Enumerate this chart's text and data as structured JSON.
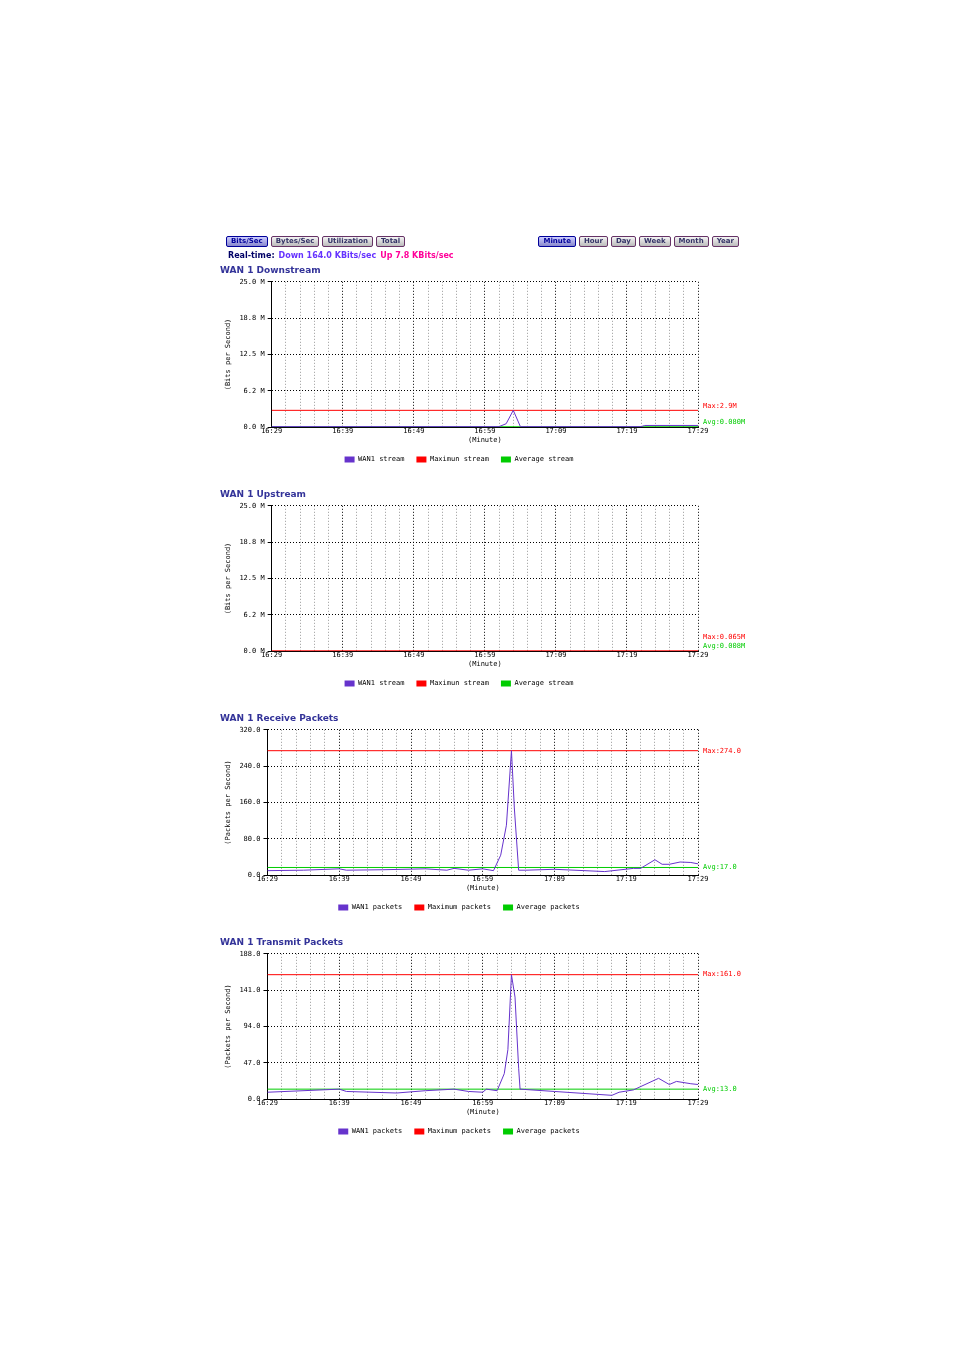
{
  "chart_data": [
    {
      "type": "other",
      "annotations": [
        "Bits/Sec",
        "Bytes/Sec",
        "Utilization",
        "Total",
        "Minute",
        "Hour",
        "Day",
        "Week",
        "Month",
        "Year",
        "Real-time:",
        "Down 164.0 KBits/sec",
        "Up 7.8 KBits/sec"
      ]
    },
    {
      "type": "line",
      "title": "WAN 1 Downstream",
      "xlabel": "(Minute)",
      "ylabel": "(Bits per Second)",
      "legend": "bottom",
      "grid": true,
      "xlim": [
        16.4833,
        17.4833
      ],
      "ylim": [
        0,
        25
      ],
      "xticks": [
        {
          "value": 16.4833,
          "label": "16:29"
        },
        {
          "value": 16.5167,
          "label": null
        },
        {
          "value": 16.55,
          "label": null
        },
        {
          "value": 16.5833,
          "label": null
        },
        {
          "value": 16.6167,
          "label": null
        },
        {
          "value": 16.65,
          "label": "16:39"
        },
        {
          "value": 16.6833,
          "label": null
        },
        {
          "value": 16.7167,
          "label": null
        },
        {
          "value": 16.75,
          "label": null
        },
        {
          "value": 16.7833,
          "label": null
        },
        {
          "value": 16.8167,
          "label": "16:49"
        },
        {
          "value": 16.85,
          "label": null
        },
        {
          "value": 16.8833,
          "label": null
        },
        {
          "value": 16.9167,
          "label": null
        },
        {
          "value": 16.95,
          "label": null
        },
        {
          "value": 16.9833,
          "label": "16:59"
        },
        {
          "value": 17.0167,
          "label": null
        },
        {
          "value": 17.05,
          "label": null
        },
        {
          "value": 17.0833,
          "label": null
        },
        {
          "value": 17.1167,
          "label": null
        },
        {
          "value": 17.15,
          "label": "17:09"
        },
        {
          "value": 17.1833,
          "label": null
        },
        {
          "value": 17.2167,
          "label": null
        },
        {
          "value": 17.25,
          "label": null
        },
        {
          "value": 17.2833,
          "label": null
        },
        {
          "value": 17.3167,
          "label": "17:19"
        },
        {
          "value": 17.35,
          "label": null
        },
        {
          "value": 17.3833,
          "label": null
        },
        {
          "value": 17.4167,
          "label": null
        },
        {
          "value": 17.45,
          "label": null
        },
        {
          "value": 17.4833,
          "label": "17:29"
        }
      ],
      "yticks": [
        {
          "value": 0,
          "label": "0.0 M"
        },
        {
          "value": 6.25,
          "label": "6.2 M"
        },
        {
          "value": 12.5,
          "label": "12.5 M"
        },
        {
          "value": 18.75,
          "label": "18.8 M"
        },
        {
          "value": 25,
          "label": "25.0 M"
        }
      ],
      "series": [
        {
          "name": "WAN1 stream",
          "color": "#6633cc",
          "x": [
            16.4833,
            17.0167,
            17.0333,
            17.05,
            17.0667,
            17.35,
            17.3583,
            17.4833
          ],
          "values": [
            0.1,
            0.1,
            0.6,
            2.9,
            0.1,
            0.1,
            0.3,
            0.3
          ]
        },
        {
          "name": "Maximun stream",
          "color": "#ff0000",
          "x": [
            16.4833,
            17.4833
          ],
          "values": [
            2.9,
            2.9
          ]
        },
        {
          "name": "Average stream",
          "color": "#00cc00",
          "x": [
            16.4833,
            17.4833
          ],
          "values": [
            0.08,
            0.08
          ]
        }
      ],
      "annotations": [
        "Max:2.9M",
        "Avg:0.080M"
      ]
    },
    {
      "type": "line",
      "title": "WAN 1 Upstream",
      "xlabel": "(Minute)",
      "ylabel": "(Bits per Second)",
      "legend": "bottom",
      "grid": true,
      "xlim": [
        16.4833,
        17.4833
      ],
      "ylim": [
        0,
        25
      ],
      "xticks": [
        {
          "value": 16.4833,
          "label": "16:29"
        },
        {
          "value": 16.5167,
          "label": null
        },
        {
          "value": 16.55,
          "label": null
        },
        {
          "value": 16.5833,
          "label": null
        },
        {
          "value": 16.6167,
          "label": null
        },
        {
          "value": 16.65,
          "label": "16:39"
        },
        {
          "value": 16.6833,
          "label": null
        },
        {
          "value": 16.7167,
          "label": null
        },
        {
          "value": 16.75,
          "label": null
        },
        {
          "value": 16.7833,
          "label": null
        },
        {
          "value": 16.8167,
          "label": "16:49"
        },
        {
          "value": 16.85,
          "label": null
        },
        {
          "value": 16.8833,
          "label": null
        },
        {
          "value": 16.9167,
          "label": null
        },
        {
          "value": 16.95,
          "label": null
        },
        {
          "value": 16.9833,
          "label": "16:59"
        },
        {
          "value": 17.0167,
          "label": null
        },
        {
          "value": 17.05,
          "label": null
        },
        {
          "value": 17.0833,
          "label": null
        },
        {
          "value": 17.1167,
          "label": null
        },
        {
          "value": 17.15,
          "label": "17:09"
        },
        {
          "value": 17.1833,
          "label": null
        },
        {
          "value": 17.2167,
          "label": null
        },
        {
          "value": 17.25,
          "label": null
        },
        {
          "value": 17.2833,
          "label": null
        },
        {
          "value": 17.3167,
          "label": "17:19"
        },
        {
          "value": 17.35,
          "label": null
        },
        {
          "value": 17.3833,
          "label": null
        },
        {
          "value": 17.4167,
          "label": null
        },
        {
          "value": 17.45,
          "label": null
        },
        {
          "value": 17.4833,
          "label": "17:29"
        }
      ],
      "yticks": [
        {
          "value": 0,
          "label": "0.0 M"
        },
        {
          "value": 6.25,
          "label": "6.2 M"
        },
        {
          "value": 12.5,
          "label": "12.5 M"
        },
        {
          "value": 18.75,
          "label": "18.8 M"
        },
        {
          "value": 25,
          "label": "25.0 M"
        }
      ],
      "series": [
        {
          "name": "WAN1 stream",
          "color": "#6633cc",
          "values": [
            null,
            null
          ]
        },
        {
          "name": "Maximun stream",
          "color": "#ff0000",
          "x": [
            16.4833,
            17.4833
          ],
          "values": [
            0.065,
            0.065
          ]
        },
        {
          "name": "Average stream",
          "color": "#00cc00",
          "values": [
            null,
            null
          ]
        }
      ],
      "annotations": [
        "Max:0.065M",
        "Avg:0.008M"
      ]
    },
    {
      "type": "line",
      "title": "WAN 1 Receive Packets",
      "xlabel": "(Minute)",
      "ylabel": "(Packets per Second)",
      "legend": "bottom",
      "grid": true,
      "xlim": [
        16.4833,
        17.4833
      ],
      "ylim": [
        0,
        320
      ],
      "xticks": [
        {
          "value": 16.4833,
          "label": "16:29"
        },
        {
          "value": 16.5167,
          "label": null
        },
        {
          "value": 16.55,
          "label": null
        },
        {
          "value": 16.5833,
          "label": null
        },
        {
          "value": 16.6167,
          "label": null
        },
        {
          "value": 16.65,
          "label": "16:39"
        },
        {
          "value": 16.6833,
          "label": null
        },
        {
          "value": 16.7167,
          "label": null
        },
        {
          "value": 16.75,
          "label": null
        },
        {
          "value": 16.7833,
          "label": null
        },
        {
          "value": 16.8167,
          "label": "16:49"
        },
        {
          "value": 16.85,
          "label": null
        },
        {
          "value": 16.8833,
          "label": null
        },
        {
          "value": 16.9167,
          "label": null
        },
        {
          "value": 16.95,
          "label": null
        },
        {
          "value": 16.9833,
          "label": "16:59"
        },
        {
          "value": 17.0167,
          "label": null
        },
        {
          "value": 17.05,
          "label": null
        },
        {
          "value": 17.0833,
          "label": null
        },
        {
          "value": 17.1167,
          "label": null
        },
        {
          "value": 17.15,
          "label": "17:09"
        },
        {
          "value": 17.1833,
          "label": null
        },
        {
          "value": 17.2167,
          "label": null
        },
        {
          "value": 17.25,
          "label": null
        },
        {
          "value": 17.2833,
          "label": null
        },
        {
          "value": 17.3167,
          "label": "17:19"
        },
        {
          "value": 17.35,
          "label": null
        },
        {
          "value": 17.3833,
          "label": null
        },
        {
          "value": 17.4167,
          "label": null
        },
        {
          "value": 17.45,
          "label": null
        },
        {
          "value": 17.4833,
          "label": "17:29"
        }
      ],
      "yticks": [
        {
          "value": 0,
          "label": "0.0"
        },
        {
          "value": 80,
          "label": "80.0"
        },
        {
          "value": 160,
          "label": "160.0"
        },
        {
          "value": 240,
          "label": "240.0"
        },
        {
          "value": 320,
          "label": "320.0"
        }
      ],
      "series": [
        {
          "name": "WAN1 packets",
          "color": "#6633cc",
          "x": [
            16.4833,
            16.5667,
            16.65,
            16.6667,
            16.75,
            16.85,
            16.9,
            16.9167,
            16.95,
            16.9833,
            17.0083,
            17.025,
            17.0383,
            17.05,
            17.0567,
            17.0667,
            17.0833,
            17.15,
            17.2667,
            17.3333,
            17.35,
            17.3833,
            17.4,
            17.4167,
            17.4417,
            17.4667,
            17.4833
          ],
          "values": [
            10,
            11,
            14,
            11,
            12,
            14,
            11,
            15,
            11,
            14,
            10,
            44,
            110,
            274,
            148,
            11,
            11,
            13,
            8,
            15,
            15,
            34,
            24,
            24,
            29,
            28,
            25
          ]
        },
        {
          "name": "Maximum packets",
          "color": "#ff0000",
          "x": [
            16.4833,
            17.4833
          ],
          "values": [
            274,
            274
          ]
        },
        {
          "name": "Average packets",
          "color": "#00cc00",
          "x": [
            16.4833,
            17.4833
          ],
          "values": [
            17,
            17
          ]
        }
      ],
      "annotations": [
        "Max:274.0",
        "Avg:17.0"
      ]
    },
    {
      "type": "line",
      "title": "WAN 1 Transmit Packets",
      "xlabel": "(Minute)",
      "ylabel": "(Packets per Second)",
      "legend": "bottom",
      "grid": true,
      "xlim": [
        16.4833,
        17.4833
      ],
      "ylim": [
        0,
        188
      ],
      "xticks": [
        {
          "value": 16.4833,
          "label": "16:29"
        },
        {
          "value": 16.5167,
          "label": null
        },
        {
          "value": 16.55,
          "label": null
        },
        {
          "value": 16.5833,
          "label": null
        },
        {
          "value": 16.6167,
          "label": null
        },
        {
          "value": 16.65,
          "label": "16:39"
        },
        {
          "value": 16.6833,
          "label": null
        },
        {
          "value": 16.7167,
          "label": null
        },
        {
          "value": 16.75,
          "label": null
        },
        {
          "value": 16.7833,
          "label": null
        },
        {
          "value": 16.8167,
          "label": "16:49"
        },
        {
          "value": 16.85,
          "label": null
        },
        {
          "value": 16.8833,
          "label": null
        },
        {
          "value": 16.9167,
          "label": null
        },
        {
          "value": 16.95,
          "label": null
        },
        {
          "value": 16.9833,
          "label": "16:59"
        },
        {
          "value": 17.0167,
          "label": null
        },
        {
          "value": 17.05,
          "label": null
        },
        {
          "value": 17.0833,
          "label": null
        },
        {
          "value": 17.1167,
          "label": null
        },
        {
          "value": 17.15,
          "label": "17:09"
        },
        {
          "value": 17.1833,
          "label": null
        },
        {
          "value": 17.2167,
          "label": null
        },
        {
          "value": 17.25,
          "label": null
        },
        {
          "value": 17.2833,
          "label": null
        },
        {
          "value": 17.3167,
          "label": "17:19"
        },
        {
          "value": 17.35,
          "label": null
        },
        {
          "value": 17.3833,
          "label": null
        },
        {
          "value": 17.4167,
          "label": null
        },
        {
          "value": 17.45,
          "label": null
        },
        {
          "value": 17.4833,
          "label": "17:29"
        }
      ],
      "yticks": [
        {
          "value": 0,
          "label": "0.0"
        },
        {
          "value": 47,
          "label": "47.0"
        },
        {
          "value": 94,
          "label": "94.0"
        },
        {
          "value": 141,
          "label": "141.0"
        },
        {
          "value": 188,
          "label": "188.0"
        }
      ],
      "series": [
        {
          "name": "WAN1 packets",
          "color": "#6633cc",
          "x": [
            16.4833,
            16.65,
            16.6667,
            16.7833,
            16.85,
            16.9167,
            16.95,
            16.9833,
            16.9917,
            17.0167,
            17.0333,
            17.0417,
            17.05,
            17.0583,
            17.0667,
            17.07,
            17.15,
            17.2833,
            17.3,
            17.3333,
            17.3917,
            17.4167,
            17.4333,
            17.4667,
            17.4833
          ],
          "values": [
            9,
            13,
            10,
            8,
            11,
            13,
            10,
            9,
            13,
            11,
            33,
            64,
            161,
            132,
            40,
            13,
            10,
            5,
            9,
            12,
            27,
            19,
            23,
            20,
            19
          ]
        },
        {
          "name": "Maximum packets",
          "color": "#ff0000",
          "x": [
            16.4833,
            17.4833
          ],
          "values": [
            161,
            161
          ]
        },
        {
          "name": "Average packets",
          "color": "#00cc00",
          "x": [
            16.4833,
            17.4833
          ],
          "values": [
            13,
            13
          ]
        }
      ],
      "annotations": [
        "Max:161.0",
        "Avg:13.0"
      ]
    }
  ]
}
